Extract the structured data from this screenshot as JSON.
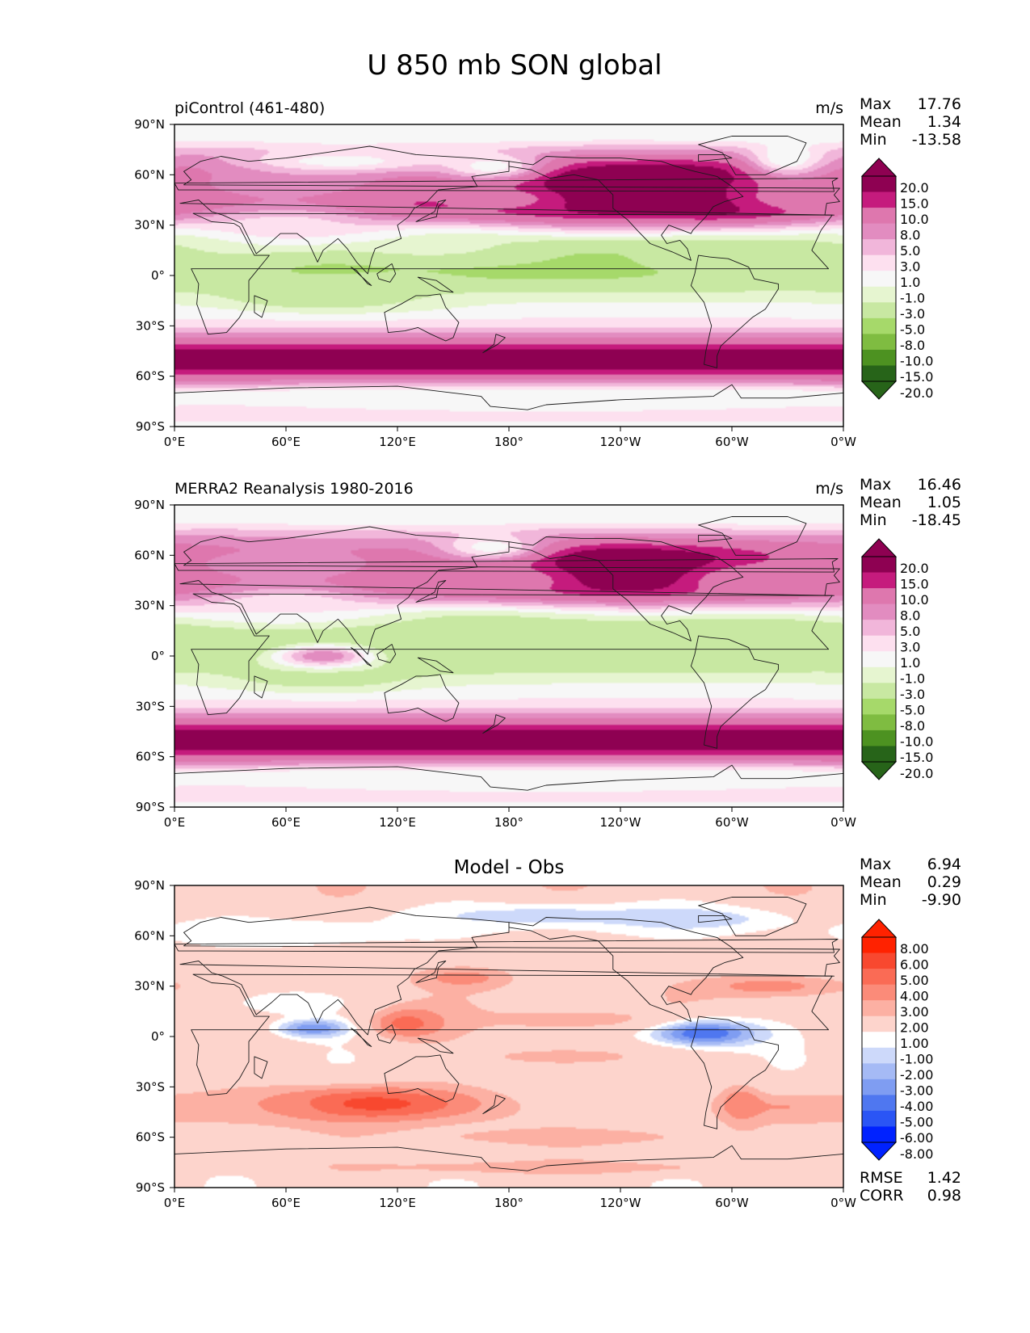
{
  "figure": {
    "suptitle": "U 850 mb SON global"
  },
  "colors": {
    "piyg": [
      "#276419",
      "#4d9221",
      "#7fbc41",
      "#a6d96a",
      "#c8e8a2",
      "#e6f5d0",
      "#f7f7f7",
      "#fde0ef",
      "#f1b6da",
      "#e28cc0",
      "#de77ae",
      "#c51b7d",
      "#8e0152"
    ],
    "diff": [
      "#0022ff",
      "#2a55f5",
      "#4f77f0",
      "#7f9df2",
      "#a5baf5",
      "#cdd9fa",
      "#ffffff",
      "#fdd4cc",
      "#fcb0a3",
      "#fb8b79",
      "#fa6b55",
      "#f8482f",
      "#ff2200"
    ],
    "coast": "#1a1a1a"
  },
  "panels": [
    {
      "title": "piControl (461-480)",
      "units": "m/s",
      "stats": [
        {
          "label": "Max",
          "value": "17.76"
        },
        {
          "label": "Mean",
          "value": "1.34"
        },
        {
          "label": "Min",
          "value": "-13.58"
        }
      ],
      "colorbar": {
        "ticks": [
          "20.0",
          "15.0",
          "10.0",
          "8.0",
          "5.0",
          "3.0",
          "1.0",
          "-1.0",
          "-3.0",
          "-5.0",
          "-8.0",
          "-10.0",
          "-15.0",
          "-20.0"
        ]
      }
    },
    {
      "title": "MERRA2 Reanalysis 1980-2016",
      "units": "m/s",
      "stats": [
        {
          "label": "Max",
          "value": "16.46"
        },
        {
          "label": "Mean",
          "value": "1.05"
        },
        {
          "label": "Min",
          "value": "-18.45"
        }
      ],
      "colorbar": {
        "ticks": [
          "20.0",
          "15.0",
          "10.0",
          "8.0",
          "5.0",
          "3.0",
          "1.0",
          "-1.0",
          "-3.0",
          "-5.0",
          "-8.0",
          "-10.0",
          "-15.0",
          "-20.0"
        ]
      }
    },
    {
      "title": "Model - Obs",
      "units": "",
      "stats": [
        {
          "label": "Max",
          "value": "6.94"
        },
        {
          "label": "Mean",
          "value": "0.29"
        },
        {
          "label": "Min",
          "value": "-9.90"
        }
      ],
      "colorbar": {
        "ticks": [
          "8.00",
          "6.00",
          "5.00",
          "4.00",
          "3.00",
          "2.00",
          "1.00",
          "-1.00",
          "-2.00",
          "-3.00",
          "-4.00",
          "-5.00",
          "-6.00",
          "-8.00"
        ]
      },
      "metrics": [
        {
          "label": "RMSE",
          "value": "1.42"
        },
        {
          "label": "CORR",
          "value": "0.98"
        }
      ]
    }
  ],
  "chart_data": [
    {
      "type": "heatmap",
      "title": "piControl (461-480)",
      "variable": "U 850 mb SON",
      "units": "m/s",
      "xlim": [
        0,
        360
      ],
      "ylim": [
        -90,
        90
      ],
      "xticks": [
        "0°E",
        "60°E",
        "120°E",
        "180°",
        "120°W",
        "60°W",
        "0°W"
      ],
      "yticks": [
        "90°N",
        "60°N",
        "30°N",
        "0°",
        "30°S",
        "60°S",
        "90°S"
      ],
      "levels": [
        -20,
        -15,
        -10,
        -8,
        -5,
        -3,
        -1,
        1,
        3,
        5,
        8,
        10,
        15,
        20
      ],
      "colormap": "PiYG_r",
      "stats": {
        "max": 17.76,
        "mean": 1.34,
        "min": -13.58
      },
      "features": [
        {
          "lat": 52,
          "lon": 260,
          "value": 17,
          "sx": 130,
          "sy": 14
        },
        {
          "lat": 48,
          "lon": 80,
          "value": 16,
          "sx": 60,
          "sy": 10
        },
        {
          "lat": 50,
          "lon": 300,
          "value": 14,
          "sx": 25,
          "sy": 10
        },
        {
          "lat": 45,
          "lon": 180,
          "value": 8,
          "sx": 30,
          "sy": 7
        },
        {
          "lat": 45,
          "lon": 330,
          "value": 9,
          "sx": 25,
          "sy": 7
        },
        {
          "lat": 55,
          "lon": 60,
          "value": 4,
          "sx": 80,
          "sy": 12
        },
        {
          "lat": 8,
          "lon": 200,
          "value": -9,
          "sx": 70,
          "sy": 8
        },
        {
          "lat": -12,
          "lon": 80,
          "value": -8,
          "sx": 35,
          "sy": 6
        },
        {
          "lat": 10,
          "lon": 320,
          "value": -6,
          "sx": 50,
          "sy": 9
        },
        {
          "lat": 15,
          "lon": 20,
          "value": -6,
          "sx": 30,
          "sy": 10
        },
        {
          "lat": 18,
          "lon": 140,
          "value": -4,
          "sx": 40,
          "sy": 8
        },
        {
          "lat": -10,
          "lon": 120,
          "value": -5,
          "sx": 25,
          "sy": 6
        },
        {
          "lat": 65,
          "lon": 170,
          "value": -2,
          "sx": 20,
          "sy": 6
        },
        {
          "lat": 70,
          "lon": 330,
          "value": -3,
          "sx": 15,
          "sy": 8
        },
        {
          "lat": 68,
          "lon": 90,
          "value": -2,
          "sx": 40,
          "sy": 5
        },
        {
          "lat": 30,
          "lon": 60,
          "value": 0,
          "sx": 40,
          "sy": 10
        },
        {
          "lat": -75,
          "lon": 200,
          "value": -3,
          "sx": 120,
          "sy": 5
        }
      ]
    },
    {
      "type": "heatmap",
      "title": "MERRA2 Reanalysis 1980-2016",
      "variable": "U 850 mb SON",
      "units": "m/s",
      "xlim": [
        0,
        360
      ],
      "ylim": [
        -90,
        90
      ],
      "xticks": [
        "0°E",
        "60°E",
        "120°E",
        "180°",
        "120°W",
        "60°W",
        "0°W"
      ],
      "yticks": [
        "90°N",
        "60°N",
        "30°N",
        "0°",
        "30°S",
        "60°S",
        "90°S"
      ],
      "levels": [
        -20,
        -15,
        -10,
        -8,
        -5,
        -3,
        -1,
        1,
        3,
        5,
        8,
        10,
        15,
        20
      ],
      "colormap": "PiYG_r",
      "stats": {
        "max": 16.46,
        "mean": 1.05,
        "min": -18.45
      },
      "features": [
        {
          "lat": 52,
          "lon": 250,
          "value": 16,
          "sx": 140,
          "sy": 13
        },
        {
          "lat": 47,
          "lon": 70,
          "value": 15,
          "sx": 50,
          "sy": 9
        },
        {
          "lat": 45,
          "lon": 180,
          "value": 7,
          "sx": 32,
          "sy": 8
        },
        {
          "lat": 45,
          "lon": 310,
          "value": 6,
          "sx": 30,
          "sy": 8
        },
        {
          "lat": 55,
          "lon": 60,
          "value": 4,
          "sx": 80,
          "sy": 12
        },
        {
          "lat": 5,
          "lon": 200,
          "value": -8,
          "sx": 75,
          "sy": 8
        },
        {
          "lat": -12,
          "lon": 80,
          "value": -7,
          "sx": 35,
          "sy": 6
        },
        {
          "lat": 10,
          "lon": 320,
          "value": -6,
          "sx": 50,
          "sy": 9
        },
        {
          "lat": 18,
          "lon": 160,
          "value": -6,
          "sx": 50,
          "sy": 8
        },
        {
          "lat": 0,
          "lon": 80,
          "value": 5,
          "sx": 20,
          "sy": 5
        },
        {
          "lat": 65,
          "lon": 170,
          "value": -2,
          "sx": 20,
          "sy": 6
        },
        {
          "lat": 30,
          "lon": 60,
          "value": -1,
          "sx": 40,
          "sy": 10
        },
        {
          "lat": -75,
          "lon": 200,
          "value": -3,
          "sx": 120,
          "sy": 5
        }
      ]
    },
    {
      "type": "heatmap",
      "title": "Model - Obs",
      "xlim": [
        0,
        360
      ],
      "ylim": [
        -90,
        90
      ],
      "xticks": [
        "0°E",
        "60°E",
        "120°E",
        "180°",
        "120°W",
        "60°W",
        "0°W"
      ],
      "yticks": [
        "90°N",
        "60°N",
        "30°N",
        "0°",
        "30°S",
        "60°S",
        "90°S"
      ],
      "levels": [
        -8,
        -6,
        -5,
        -4,
        -3,
        -2,
        -1,
        1,
        2,
        3,
        4,
        5,
        6,
        8
      ],
      "colormap": "bwr",
      "stats": {
        "max": 6.94,
        "mean": 0.29,
        "min": -9.9
      },
      "metrics": {
        "rmse": 1.42,
        "corr": 0.98
      },
      "features": [
        {
          "lat": -40,
          "lon": 105,
          "value": 4.5,
          "sx": 45,
          "sy": 8
        },
        {
          "lat": -42,
          "lon": 30,
          "value": 2,
          "sx": 30,
          "sy": 6
        },
        {
          "lat": -42,
          "lon": 330,
          "value": 2,
          "sx": 25,
          "sy": 6
        },
        {
          "lat": -60,
          "lon": 210,
          "value": 1.5,
          "sx": 60,
          "sy": 4
        },
        {
          "lat": 5,
          "lon": 75,
          "value": -5,
          "sx": 15,
          "sy": 4
        },
        {
          "lat": 2,
          "lon": 285,
          "value": -6,
          "sx": 22,
          "sy": 6
        },
        {
          "lat": 72,
          "lon": 200,
          "value": -2.5,
          "sx": 60,
          "sy": 6
        },
        {
          "lat": 70,
          "lon": 280,
          "value": -2.5,
          "sx": 40,
          "sy": 6
        },
        {
          "lat": 62,
          "lon": 60,
          "value": -2,
          "sx": 50,
          "sy": 6
        },
        {
          "lat": 30,
          "lon": 320,
          "value": 2.5,
          "sx": 30,
          "sy": 5
        },
        {
          "lat": 35,
          "lon": 155,
          "value": 2.5,
          "sx": 20,
          "sy": 5
        },
        {
          "lat": 8,
          "lon": 125,
          "value": 3.5,
          "sx": 15,
          "sy": 7
        },
        {
          "lat": 10,
          "lon": 210,
          "value": 2,
          "sx": 30,
          "sy": 4
        },
        {
          "lat": -12,
          "lon": 210,
          "value": 2,
          "sx": 30,
          "sy": 4
        },
        {
          "lat": -40,
          "lon": 305,
          "value": 3,
          "sx": 8,
          "sy": 8
        },
        {
          "lat": -78,
          "lon": 200,
          "value": 2,
          "sx": 80,
          "sy": 3
        },
        {
          "lat": 20,
          "lon": 60,
          "value": -2,
          "sx": 25,
          "sy": 6
        }
      ]
    }
  ]
}
